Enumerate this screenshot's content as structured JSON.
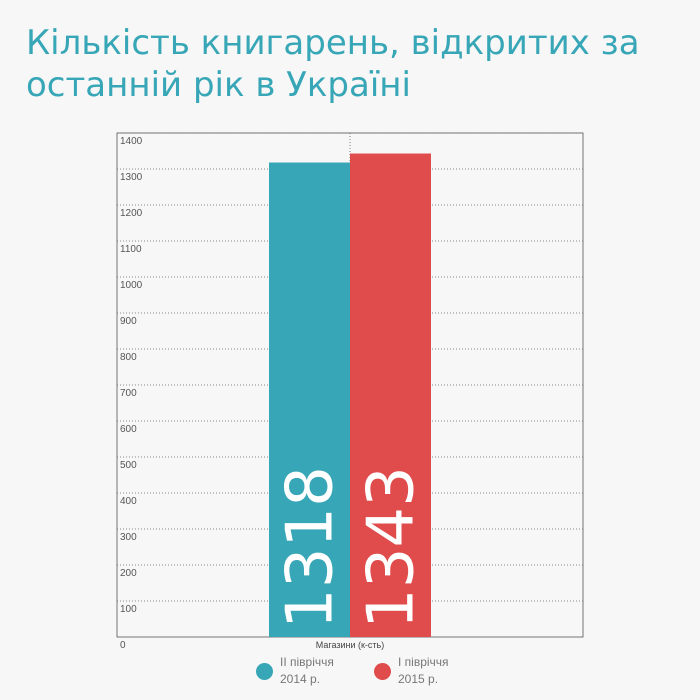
{
  "title_lines": [
    "Кількість книгарень, відкритих за",
    "останній рік в Україні"
  ],
  "chart_data": {
    "type": "bar",
    "categories": [
      "II півріччя 2014 р.",
      "I півріччя 2015 р."
    ],
    "values": [
      1318,
      1343
    ],
    "value_labels": [
      "1318",
      "1343"
    ],
    "colors": [
      "#37a6b6",
      "#e04b4c"
    ],
    "xlabel": "Магазини (к-сть)",
    "ylabel": "",
    "ylim": [
      0,
      1400
    ],
    "yticks": [
      0,
      100,
      200,
      300,
      400,
      500,
      600,
      700,
      800,
      900,
      1000,
      1100,
      1200,
      1300,
      1400
    ],
    "grid": true,
    "legend_position": "bottom"
  },
  "legend": [
    {
      "line1": "II півріччя",
      "line2": "2014 р.",
      "color": "#37a6b6"
    },
    {
      "line1": "I півріччя",
      "line2": "2015 р.",
      "color": "#e04b4c"
    }
  ]
}
